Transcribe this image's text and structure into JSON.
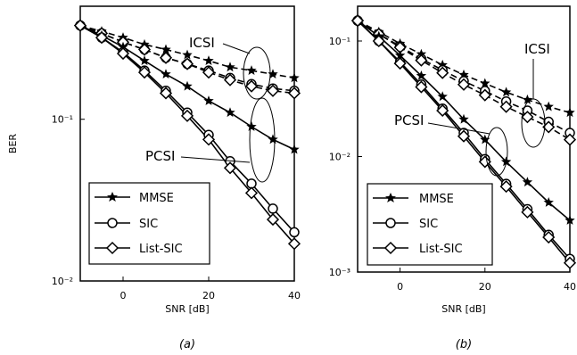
{
  "chart_data": [
    {
      "type": "line",
      "scale": "log-y",
      "subplot_label": "(a)",
      "xlabel": "SNR [dB]",
      "ylabel": "BER",
      "xlim": [
        -10,
        40
      ],
      "ylim": [
        0.01,
        0.5
      ],
      "xticks": [
        {
          "v": 0,
          "label": "0"
        },
        {
          "v": 20,
          "label": "20"
        },
        {
          "v": 40,
          "label": "40"
        }
      ],
      "yticks": [
        {
          "v": 0.1,
          "label": "10⁻¹"
        },
        {
          "v": 0.01,
          "label": "10⁻²"
        }
      ],
      "x": [
        -10,
        -5,
        0,
        5,
        10,
        15,
        20,
        25,
        30,
        35,
        40
      ],
      "series": [
        {
          "name": "MMSE",
          "group": "ICSI",
          "marker": "star",
          "values": [
            0.38,
            0.35,
            0.32,
            0.29,
            0.27,
            0.25,
            0.23,
            0.21,
            0.2,
            0.19,
            0.18
          ]
        },
        {
          "name": "SIC",
          "group": "ICSI",
          "marker": "circle",
          "values": [
            0.38,
            0.34,
            0.3,
            0.27,
            0.24,
            0.22,
            0.2,
            0.18,
            0.165,
            0.155,
            0.15
          ]
        },
        {
          "name": "List-SIC",
          "group": "ICSI",
          "marker": "diamond",
          "values": [
            0.38,
            0.34,
            0.3,
            0.27,
            0.24,
            0.22,
            0.195,
            0.175,
            0.16,
            0.15,
            0.145
          ]
        },
        {
          "name": "MMSE",
          "group": "PCSI",
          "marker": "star",
          "values": [
            0.38,
            0.33,
            0.28,
            0.23,
            0.19,
            0.16,
            0.13,
            0.11,
            0.09,
            0.075,
            0.065
          ]
        },
        {
          "name": "SIC",
          "group": "PCSI",
          "marker": "circle",
          "values": [
            0.38,
            0.32,
            0.26,
            0.2,
            0.15,
            0.11,
            0.08,
            0.055,
            0.04,
            0.028,
            0.02
          ]
        },
        {
          "name": "List-SIC",
          "group": "PCSI",
          "marker": "diamond",
          "values": [
            0.38,
            0.32,
            0.255,
            0.195,
            0.145,
            0.105,
            0.075,
            0.05,
            0.035,
            0.024,
            0.017
          ]
        }
      ],
      "annotations": [
        "ICSI",
        "PCSI"
      ],
      "legend": {
        "position": "bottom-left",
        "entries": [
          "MMSE",
          "SIC",
          "List-SIC"
        ]
      }
    },
    {
      "type": "line",
      "scale": "log-y",
      "subplot_label": "(b)",
      "xlabel": "SNR [dB]",
      "ylabel": "",
      "xlim": [
        -10,
        40
      ],
      "ylim": [
        0.001,
        0.2
      ],
      "xticks": [
        {
          "v": 0,
          "label": "0"
        },
        {
          "v": 20,
          "label": "20"
        },
        {
          "v": 40,
          "label": "40"
        }
      ],
      "yticks": [
        {
          "v": 0.1,
          "label": "10⁻¹"
        },
        {
          "v": 0.01,
          "label": "10⁻²"
        },
        {
          "v": 0.001,
          "label": "10⁻³"
        }
      ],
      "x": [
        -10,
        -5,
        0,
        5,
        10,
        15,
        20,
        25,
        30,
        35,
        40
      ],
      "series": [
        {
          "name": "MMSE",
          "group": "ICSI",
          "marker": "star",
          "values": [
            0.15,
            0.12,
            0.095,
            0.077,
            0.062,
            0.051,
            0.043,
            0.036,
            0.031,
            0.027,
            0.024
          ]
        },
        {
          "name": "SIC",
          "group": "ICSI",
          "marker": "circle",
          "values": [
            0.15,
            0.115,
            0.09,
            0.07,
            0.056,
            0.045,
            0.037,
            0.03,
            0.025,
            0.02,
            0.016
          ]
        },
        {
          "name": "List-SIC",
          "group": "ICSI",
          "marker": "diamond",
          "values": [
            0.15,
            0.115,
            0.088,
            0.068,
            0.053,
            0.042,
            0.034,
            0.027,
            0.022,
            0.018,
            0.014
          ]
        },
        {
          "name": "MMSE",
          "group": "PCSI",
          "marker": "star",
          "values": [
            0.15,
            0.11,
            0.075,
            0.05,
            0.033,
            0.021,
            0.014,
            0.009,
            0.006,
            0.004,
            0.0028
          ]
        },
        {
          "name": "SIC",
          "group": "PCSI",
          "marker": "circle",
          "values": [
            0.15,
            0.1,
            0.066,
            0.042,
            0.026,
            0.016,
            0.0095,
            0.0058,
            0.0035,
            0.0021,
            0.0013
          ]
        },
        {
          "name": "List-SIC",
          "group": "PCSI",
          "marker": "diamond",
          "values": [
            0.15,
            0.1,
            0.064,
            0.04,
            0.025,
            0.015,
            0.009,
            0.0055,
            0.0033,
            0.002,
            0.0012
          ]
        }
      ],
      "annotations": [
        "ICSI",
        "PCSI"
      ],
      "legend": {
        "position": "bottom-left",
        "entries": [
          "MMSE",
          "SIC",
          "List-SIC"
        ]
      }
    }
  ]
}
